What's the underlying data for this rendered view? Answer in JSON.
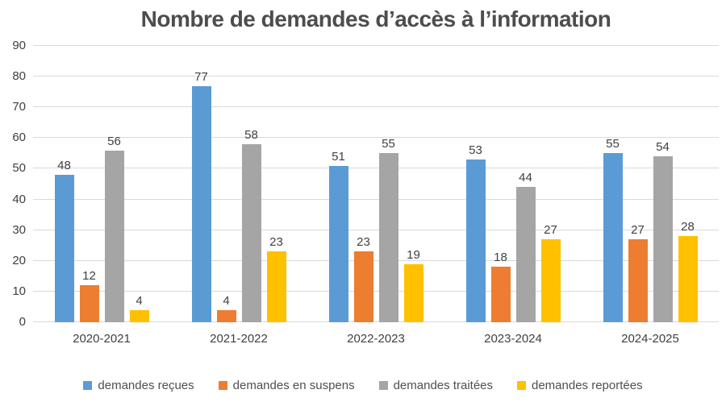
{
  "chart_data": {
    "type": "bar",
    "title": "Nombre de demandes d’accès à l’information",
    "categories": [
      "2020-2021",
      "2021-2022",
      "2022-2023",
      "2023-2024",
      "2024-2025"
    ],
    "series": [
      {
        "name": "demandes reçues",
        "color": "#5B9BD5",
        "values": [
          48,
          77,
          51,
          53,
          55
        ]
      },
      {
        "name": "demandes en suspens",
        "color": "#ED7D31",
        "values": [
          12,
          4,
          23,
          18,
          27
        ]
      },
      {
        "name": "demandes traitées",
        "color": "#A5A5A5",
        "values": [
          56,
          58,
          55,
          44,
          54
        ]
      },
      {
        "name": "demandes reportées",
        "color": "#FFC000",
        "values": [
          4,
          23,
          19,
          27,
          28
        ]
      }
    ],
    "y_axis": {
      "min": 0,
      "max": 90,
      "tick_step": 10,
      "ticks": [
        0,
        10,
        20,
        30,
        40,
        50,
        60,
        70,
        80,
        90
      ]
    },
    "data_labels": true,
    "grid": true,
    "legend_position": "bottom",
    "style_colors": {
      "gridline": "#D9D9D9",
      "title_text": "#4D4D4D",
      "label_text": "#404040"
    }
  }
}
